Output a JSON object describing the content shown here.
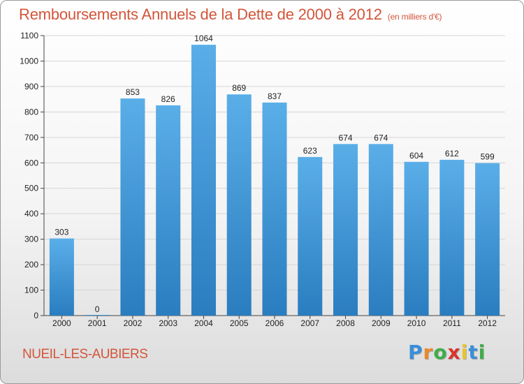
{
  "header": {
    "title": "Remboursements Annuels de la Dette de 2000 à 2012",
    "unit": "(en milliers d'€)"
  },
  "footer": {
    "commune": "NUEIL-LES-AUBIERS",
    "logo_letters": [
      "P",
      "r",
      "o",
      "x",
      "i",
      "t",
      "i"
    ],
    "logo_colors": [
      "#3a8fd8",
      "#e8892b",
      "#3fae49",
      "#d9342b",
      "#e8c52b",
      "#3a8fd8",
      "#3fae49"
    ]
  },
  "chart_data": {
    "type": "bar",
    "title": "Remboursements Annuels de la Dette de 2000 à 2012",
    "xlabel": "",
    "ylabel": "",
    "categories": [
      "2000",
      "2001",
      "2002",
      "2003",
      "2004",
      "2005",
      "2006",
      "2007",
      "2008",
      "2009",
      "2010",
      "2011",
      "2012"
    ],
    "values": [
      303,
      0,
      853,
      826,
      1064,
      869,
      837,
      623,
      674,
      674,
      604,
      612,
      599
    ],
    "ylim": [
      0,
      1100
    ],
    "yticks": [
      0,
      100,
      200,
      300,
      400,
      500,
      600,
      700,
      800,
      900,
      1000,
      1100
    ],
    "grid": true,
    "bar_color_top": "#5aaee8",
    "bar_color_bottom": "#2a7dbf",
    "grid_color": "#d6d6d6"
  }
}
